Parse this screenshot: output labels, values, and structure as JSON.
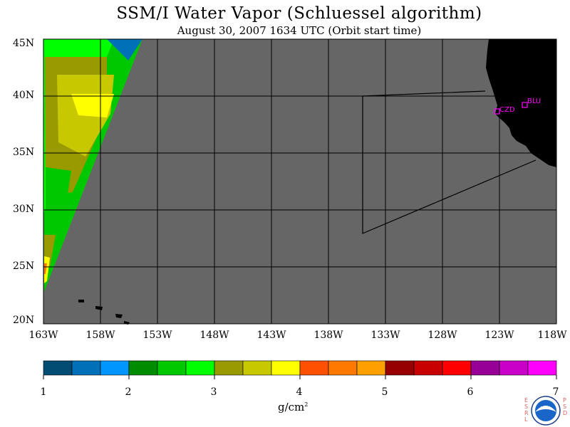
{
  "title": "SSM/I Water Vapor (Schluessel algorithm)",
  "subtitle": "August 30, 2007  1634 UTC  (Orbit start time)",
  "lat_labels": [
    "45N",
    "40N",
    "35N",
    "30N",
    "25N",
    "20N"
  ],
  "lon_labels": [
    "163W",
    "158W",
    "153W",
    "148W",
    "143W",
    "138W",
    "133W",
    "128W",
    "123W",
    "118W"
  ],
  "stations": [
    "CZD",
    "BLU"
  ],
  "colorbar": {
    "tick_labels": [
      "1",
      "2",
      "3",
      "4",
      "5",
      "6",
      "7"
    ],
    "units": "g/cm",
    "units_exp": "2",
    "colors": [
      "#004c73",
      "#0070b8",
      "#0096ff",
      "#008c00",
      "#00c800",
      "#00ff00",
      "#999900",
      "#c8c800",
      "#ffff00",
      "#ff5000",
      "#ff7800",
      "#ffa000",
      "#960000",
      "#c80000",
      "#ff0000",
      "#960096",
      "#c800c8",
      "#ff00ff"
    ]
  },
  "colors": {
    "ocean": "#666666",
    "land": "#000000",
    "station": "#ff00ff"
  },
  "logo": {
    "left_text": "ESRL",
    "right_text": "PSD",
    "center_text": "NOAA"
  }
}
